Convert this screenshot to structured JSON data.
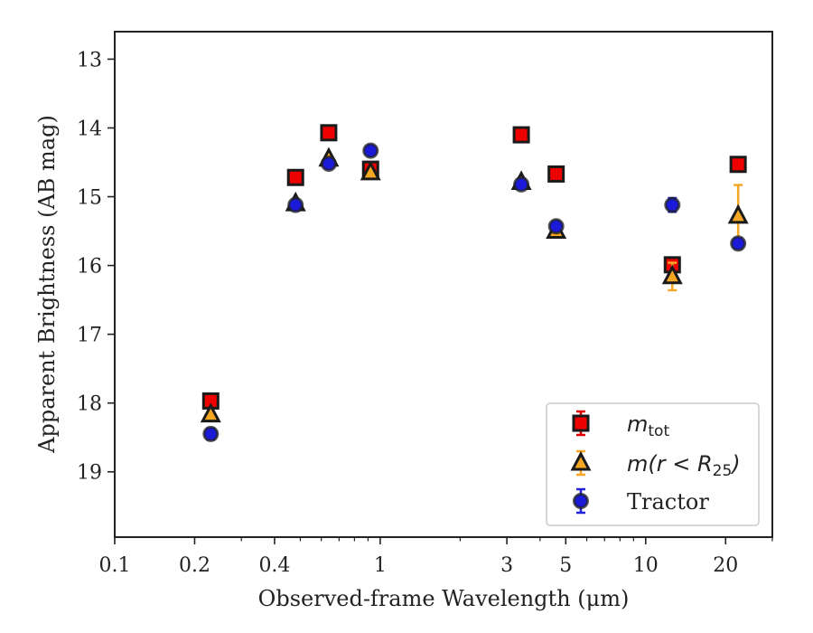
{
  "chart_data": {
    "type": "scatter",
    "xlabel": "Observed-frame Wavelength (μm)",
    "ylabel": "Apparent Brightness (AB mag)",
    "x_scale": "log",
    "y_inverted": true,
    "xlim": [
      0.1,
      30
    ],
    "ylim": [
      19.95,
      12.6
    ],
    "x_ticks": [
      {
        "value": 0.1,
        "label": "0.1"
      },
      {
        "value": 0.2,
        "label": "0.2"
      },
      {
        "value": 0.4,
        "label": "0.4"
      },
      {
        "value": 1,
        "label": "1"
      },
      {
        "value": 3,
        "label": "3"
      },
      {
        "value": 5,
        "label": "5"
      },
      {
        "value": 10,
        "label": "10"
      },
      {
        "value": 20,
        "label": "20"
      }
    ],
    "y_ticks": [
      13,
      14,
      15,
      16,
      17,
      18,
      19
    ],
    "grid": false,
    "legend_position": "lower-right",
    "series": [
      {
        "legend_label": "m_tot",
        "legend_main": "m",
        "legend_sub": "tot",
        "marker": "square",
        "color": "#ee0000",
        "error_color": "#dd0000",
        "points": [
          {
            "x": 0.23,
            "y": 17.97,
            "err": 0.02
          },
          {
            "x": 0.48,
            "y": 14.72,
            "err": 0.02
          },
          {
            "x": 0.64,
            "y": 14.07,
            "err": 0.02
          },
          {
            "x": 0.92,
            "y": 14.6,
            "err": 0.02
          },
          {
            "x": 3.4,
            "y": 14.1,
            "err": 0.02
          },
          {
            "x": 4.6,
            "y": 14.67,
            "err": 0.02
          },
          {
            "x": 12.6,
            "y": 15.99,
            "err": 0.02
          },
          {
            "x": 22.3,
            "y": 14.53,
            "err": 0.02
          }
        ]
      },
      {
        "legend_label": "m(r < R25)",
        "legend_main": "m(r < R",
        "legend_sub": "25",
        "legend_close": ")",
        "marker": "triangle",
        "color": "#f5a623",
        "error_color": "#f5a623",
        "points": [
          {
            "x": 0.23,
            "y": 18.17,
            "err": 0.02
          },
          {
            "x": 0.48,
            "y": 15.1,
            "err": 0.02
          },
          {
            "x": 0.64,
            "y": 14.45,
            "err": 0.02
          },
          {
            "x": 0.92,
            "y": 14.65,
            "err": 0.02
          },
          {
            "x": 3.4,
            "y": 14.79,
            "err": 0.02
          },
          {
            "x": 4.6,
            "y": 15.5,
            "err": 0.04
          },
          {
            "x": 12.6,
            "y": 16.16,
            "err": 0.2
          },
          {
            "x": 22.3,
            "y": 15.28,
            "err": 0.45
          }
        ]
      },
      {
        "legend_label": "Tractor",
        "legend_main": "Tractor",
        "marker": "circle",
        "color": "#1a1ad8",
        "error_color": "#2222dd",
        "points": [
          {
            "x": 0.23,
            "y": 18.45,
            "err": 0.08
          },
          {
            "x": 0.48,
            "y": 15.12,
            "err": 0.03
          },
          {
            "x": 0.64,
            "y": 14.52,
            "err": 0.03
          },
          {
            "x": 0.92,
            "y": 14.33,
            "err": 0.05
          },
          {
            "x": 3.4,
            "y": 14.82,
            "err": 0.03
          },
          {
            "x": 4.6,
            "y": 15.43,
            "err": 0.05
          },
          {
            "x": 12.6,
            "y": 15.12,
            "err": 0.1
          },
          {
            "x": 22.3,
            "y": 15.68,
            "err": 0.07
          }
        ]
      }
    ]
  }
}
